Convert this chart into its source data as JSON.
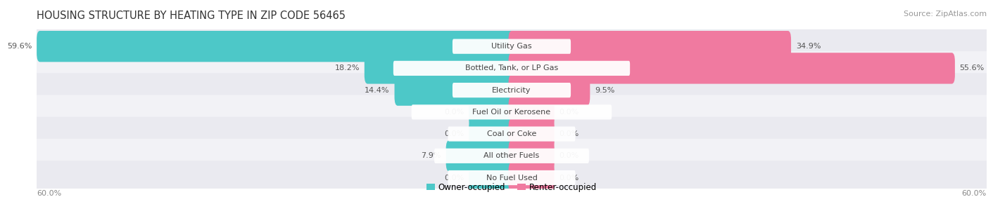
{
  "title": "HOUSING STRUCTURE BY HEATING TYPE IN ZIP CODE 56465",
  "source": "Source: ZipAtlas.com",
  "categories": [
    "Utility Gas",
    "Bottled, Tank, or LP Gas",
    "Electricity",
    "Fuel Oil or Kerosene",
    "Coal or Coke",
    "All other Fuels",
    "No Fuel Used"
  ],
  "owner_values": [
    59.6,
    18.2,
    14.4,
    0.0,
    0.0,
    7.9,
    0.0
  ],
  "renter_values": [
    34.9,
    55.6,
    9.5,
    0.0,
    0.0,
    0.0,
    0.0
  ],
  "owner_color": "#4dc8c8",
  "renter_color": "#f07aa0",
  "axis_max": 60.0,
  "zero_stub": 5.0,
  "title_fontsize": 10.5,
  "source_fontsize": 8,
  "value_fontsize": 8,
  "category_fontsize": 8,
  "legend_fontsize": 8.5,
  "background_color": "#ffffff",
  "row_colors": [
    "#eaeaf0",
    "#f2f2f6"
  ],
  "value_color": "#555555",
  "category_text_color": "#444444",
  "title_color": "#333333"
}
